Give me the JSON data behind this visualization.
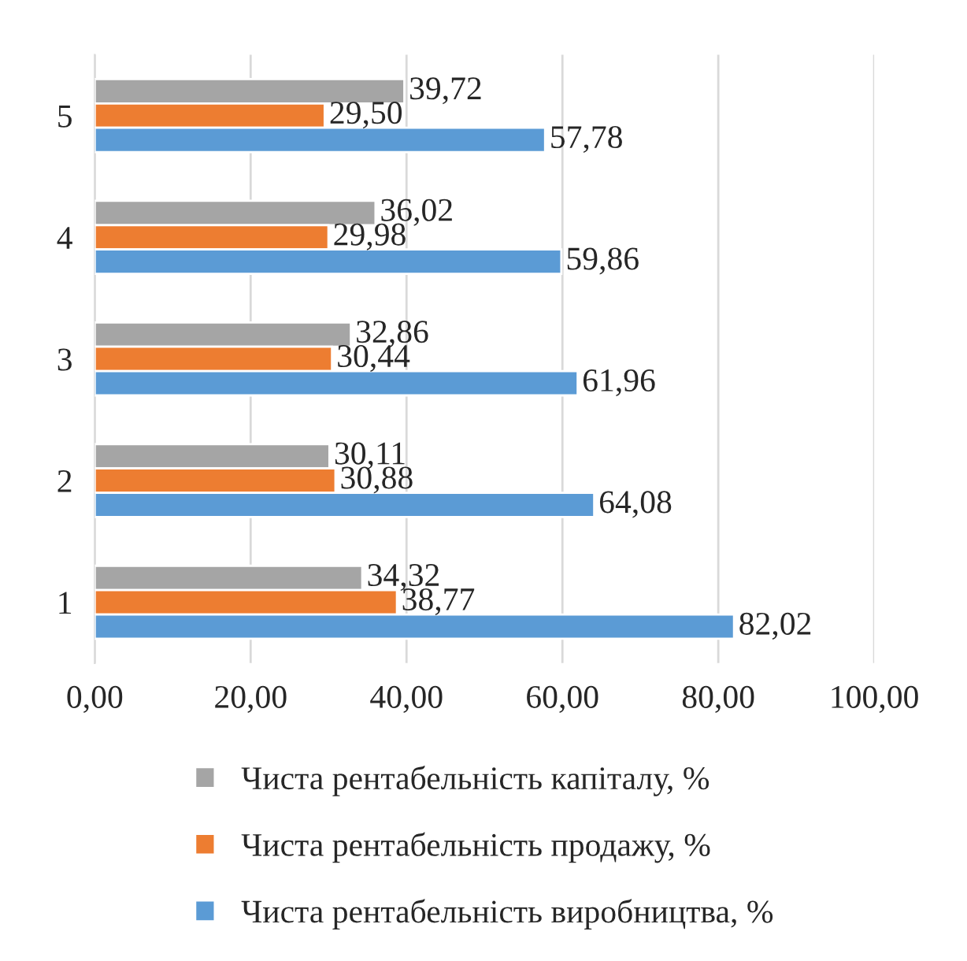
{
  "chart_data": {
    "type": "bar",
    "orientation": "horizontal",
    "categories": [
      "5",
      "4",
      "3",
      "2",
      "1"
    ],
    "series": [
      {
        "name": "Чиста рентабельність капіталу, %",
        "color": "#a5a5a5",
        "values": [
          39.72,
          36.02,
          32.86,
          30.11,
          34.32
        ],
        "value_labels": [
          "39,72",
          "36,02",
          "32,86",
          "30,11",
          "34,32"
        ]
      },
      {
        "name": "Чиста рентабельність продажу, %",
        "color": "#ed7d31",
        "values": [
          29.5,
          29.98,
          30.44,
          30.88,
          38.77
        ],
        "value_labels": [
          "29,50",
          "29,98",
          "30,44",
          "30,88",
          "38,77"
        ]
      },
      {
        "name": "Чиста рентабельність виробництва, %",
        "color": "#5b9bd5",
        "values": [
          57.78,
          59.86,
          61.96,
          64.08,
          82.02
        ],
        "value_labels": [
          "57,78",
          "59,86",
          "61,96",
          "64,08",
          "82,02"
        ]
      }
    ],
    "xlim": [
      0,
      100
    ],
    "xticks": [
      {
        "value": 0,
        "label": "0,00"
      },
      {
        "value": 20,
        "label": "20,00"
      },
      {
        "value": 40,
        "label": "40,00"
      },
      {
        "value": 60,
        "label": "60,00"
      },
      {
        "value": 80,
        "label": "80,00"
      },
      {
        "value": 100,
        "label": "100,00"
      }
    ],
    "grid": "x",
    "legend": "bottom"
  }
}
